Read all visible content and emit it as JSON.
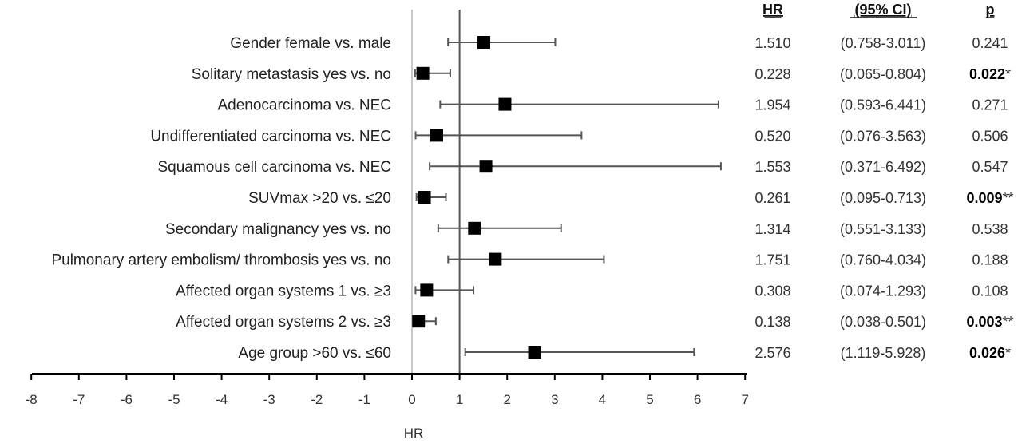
{
  "chart_data": {
    "type": "forest",
    "xlabel": "HR",
    "xlim": [
      -8,
      7
    ],
    "xticks": [
      "-8",
      "-7",
      "-6",
      "-5",
      "-4",
      "-3",
      "-2",
      "-1",
      "0",
      "1",
      "2",
      "3",
      "4",
      "5",
      "6",
      "7"
    ],
    "reference_line": 1,
    "columns": {
      "hr": "HR",
      "ci": "(95% CI)",
      "p": "p"
    },
    "rows": [
      {
        "label": "Gender female vs. male",
        "hr": 1.51,
        "lo": 0.758,
        "hi": 3.011,
        "hr_text": "1.510",
        "ci_text": "(0.758-3.011)",
        "p_text": "0.241",
        "p_significant": false,
        "stars": ""
      },
      {
        "label": "Solitary metastasis  yes vs. no",
        "hr": 0.228,
        "lo": 0.065,
        "hi": 0.804,
        "hr_text": "0.228",
        "ci_text": "(0.065-0.804)",
        "p_text": "0.022",
        "p_significant": true,
        "stars": "*"
      },
      {
        "label": "Adenocarcinoma vs. NEC",
        "hr": 1.954,
        "lo": 0.593,
        "hi": 6.441,
        "hr_text": "1.954",
        "ci_text": "(0.593-6.441)",
        "p_text": "0.271",
        "p_significant": false,
        "stars": ""
      },
      {
        "label": "Undifferentiated carcinoma vs. NEC",
        "hr": 0.52,
        "lo": 0.076,
        "hi": 3.563,
        "hr_text": "0.520",
        "ci_text": "(0.076-3.563)",
        "p_text": "0.506",
        "p_significant": false,
        "stars": ""
      },
      {
        "label": "Squamous cell carcinoma vs. NEC",
        "hr": 1.553,
        "lo": 0.371,
        "hi": 6.492,
        "hr_text": "1.553",
        "ci_text": "(0.371-6.492)",
        "p_text": "0.547",
        "p_significant": false,
        "stars": ""
      },
      {
        "label": "SUVmax  >20 vs. ≤20",
        "hr": 0.261,
        "lo": 0.095,
        "hi": 0.713,
        "hr_text": "0.261",
        "ci_text": "(0.095-0.713)",
        "p_text": "0.009",
        "p_significant": true,
        "stars": "**"
      },
      {
        "label": "Secondary malignancy yes vs. no",
        "hr": 1.314,
        "lo": 0.551,
        "hi": 3.133,
        "hr_text": "1.314",
        "ci_text": "(0.551-3.133)",
        "p_text": "0.538",
        "p_significant": false,
        "stars": ""
      },
      {
        "label": "Pulmonary artery embolism/ thrombosis yes vs. no",
        "hr": 1.751,
        "lo": 0.76,
        "hi": 4.034,
        "hr_text": "1.751",
        "ci_text": "(0.760-4.034)",
        "p_text": "0.188",
        "p_significant": false,
        "stars": ""
      },
      {
        "label": "Affected organ systems 1 vs. ≥3",
        "hr": 0.308,
        "lo": 0.074,
        "hi": 1.293,
        "hr_text": "0.308",
        "ci_text": "(0.074-1.293)",
        "p_text": "0.108",
        "p_significant": false,
        "stars": ""
      },
      {
        "label": "Affected organ systems 2 vs. ≥3",
        "hr": 0.138,
        "lo": 0.038,
        "hi": 0.501,
        "hr_text": "0.138",
        "ci_text": "(0.038-0.501)",
        "p_text": "0.003",
        "p_significant": true,
        "stars": "**"
      },
      {
        "label": "Age group >60 vs. ≤60",
        "hr": 2.576,
        "lo": 1.119,
        "hi": 5.928,
        "hr_text": "2.576",
        "ci_text": "(1.119-5.928)",
        "p_text": "0.026",
        "p_significant": true,
        "stars": "*"
      }
    ],
    "colors": {
      "marker": "#000000",
      "whisker": "#555555",
      "axis": "#000000",
      "zero_line": "#c8c8c8"
    }
  }
}
